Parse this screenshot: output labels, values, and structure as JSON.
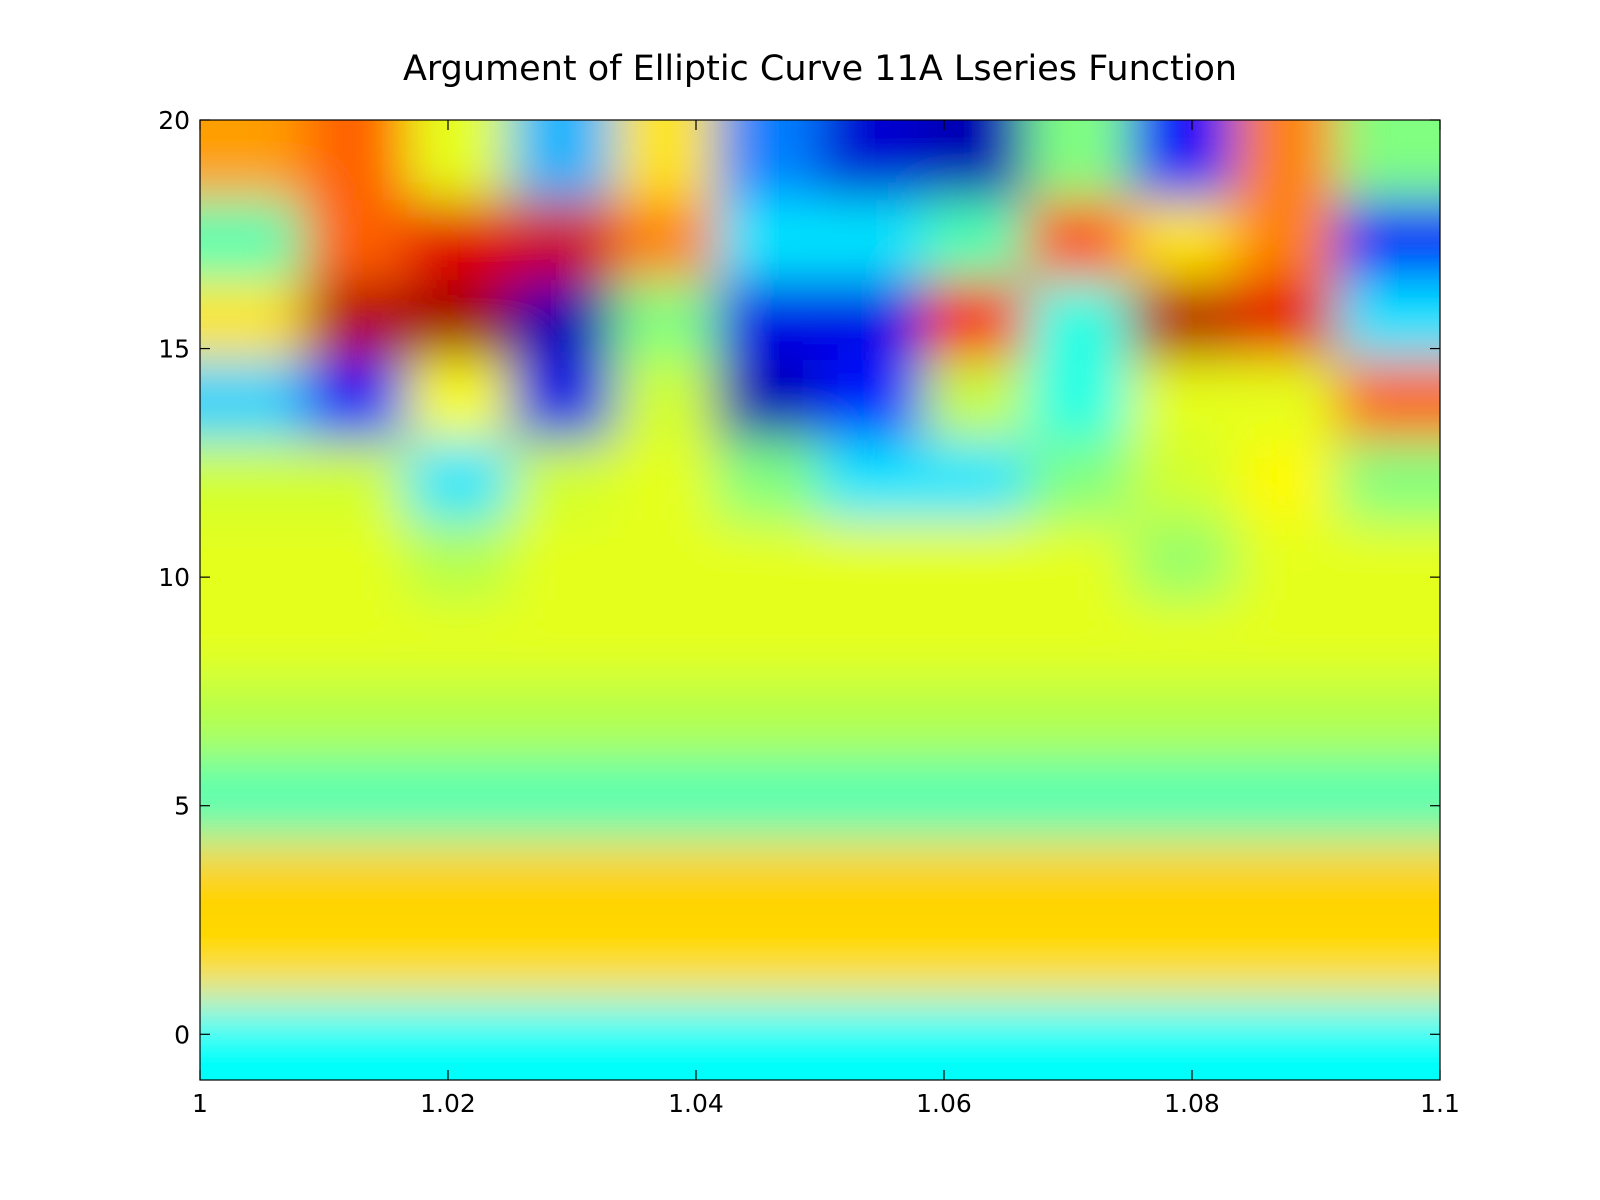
{
  "chart_data": {
    "type": "heatmap",
    "title": "Argument of Elliptic Curve 11A Lseries Function",
    "colormap": "jet",
    "clim": [
      0,
      1
    ],
    "x": [
      1.0042,
      1.0125,
      1.0208,
      1.0292,
      1.0375,
      1.0458,
      1.0542,
      1.0625,
      1.0708,
      1.0792,
      1.0875,
      1.0958
    ],
    "y": [
      19.125,
      17.375,
      15.625,
      13.875,
      12.125,
      10.375,
      8.625,
      6.875,
      5.125,
      3.375,
      1.625,
      -0.125
    ],
    "z": [
      [
        0.72,
        0.78,
        0.6,
        0.3,
        0.65,
        0.25,
        0.08,
        0.05,
        0.5,
        0.12,
        0.75,
        0.5
      ],
      [
        0.45,
        0.78,
        0.9,
        0.92,
        0.75,
        0.35,
        0.35,
        0.45,
        0.8,
        0.65,
        0.75,
        0.12
      ],
      [
        0.65,
        0.95,
        0.97,
        0.05,
        0.5,
        0.1,
        0.1,
        0.88,
        0.4,
        0.95,
        0.9,
        0.35
      ],
      [
        0.33,
        0.12,
        0.62,
        0.1,
        0.58,
        0.05,
        0.15,
        0.57,
        0.4,
        0.6,
        0.6,
        0.78
      ],
      [
        0.58,
        0.58,
        0.35,
        0.58,
        0.6,
        0.5,
        0.35,
        0.35,
        0.5,
        0.58,
        0.63,
        0.5
      ],
      [
        0.6,
        0.6,
        0.55,
        0.6,
        0.6,
        0.6,
        0.6,
        0.6,
        0.6,
        0.52,
        0.6,
        0.6
      ],
      [
        0.6,
        0.6,
        0.6,
        0.6,
        0.6,
        0.6,
        0.6,
        0.6,
        0.6,
        0.6,
        0.6,
        0.6
      ],
      [
        0.55,
        0.55,
        0.55,
        0.55,
        0.55,
        0.55,
        0.55,
        0.55,
        0.55,
        0.55,
        0.55,
        0.55
      ],
      [
        0.45,
        0.45,
        0.45,
        0.45,
        0.45,
        0.45,
        0.45,
        0.45,
        0.45,
        0.45,
        0.45,
        0.45
      ],
      [
        0.67,
        0.67,
        0.67,
        0.67,
        0.67,
        0.67,
        0.67,
        0.67,
        0.67,
        0.67,
        0.67,
        0.67
      ],
      [
        0.66,
        0.66,
        0.66,
        0.66,
        0.66,
        0.66,
        0.66,
        0.66,
        0.66,
        0.66,
        0.66,
        0.66
      ],
      [
        0.38,
        0.38,
        0.38,
        0.38,
        0.38,
        0.38,
        0.38,
        0.38,
        0.38,
        0.38,
        0.38,
        0.38
      ]
    ],
    "xlim": [
      1,
      1.1
    ],
    "xticks": [
      1,
      1.02,
      1.04,
      1.06,
      1.08,
      1.1
    ],
    "ylim": [
      -1,
      20
    ],
    "yticks": [
      0,
      5,
      10,
      15,
      20
    ]
  }
}
